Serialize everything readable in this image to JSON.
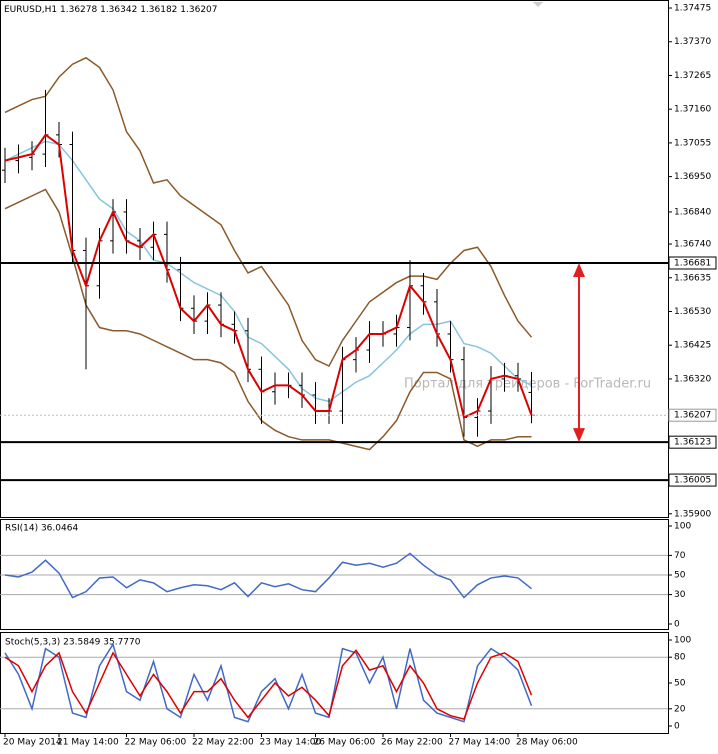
{
  "chart_data": [
    {
      "type": "candlestick",
      "title": "EURUSD,H1",
      "categories": [
        "20 May 2014",
        null,
        null,
        null,
        "21 May 14:00",
        null,
        null,
        null,
        null,
        "22 May 06:00",
        null,
        null,
        null,
        null,
        "22 May 22:00",
        null,
        null,
        null,
        null,
        "23 May 14:00",
        null,
        null,
        null,
        "26 May 06:00",
        null,
        null,
        null,
        null,
        "26 May 22:00",
        null,
        null,
        null,
        null,
        "27 May 14:00",
        null,
        null,
        null,
        null,
        "28 May 06:00",
        null
      ],
      "open": [
        1.3697,
        1.37,
        1.3701,
        1.3702,
        1.3708,
        1.3705,
        1.3672,
        1.3661,
        1.3675,
        1.3684,
        1.3675,
        1.3673,
        1.3677,
        1.3666,
        1.3654,
        1.365,
        1.3655,
        1.3649,
        1.3647,
        1.3635,
        1.3628,
        1.363,
        1.363,
        1.3627,
        1.3622,
        1.3622,
        1.3638,
        1.3641,
        1.3646,
        1.3646,
        1.3648,
        1.3661,
        1.3656,
        1.3646,
        1.3638,
        1.362,
        1.3622,
        1.3632,
        1.3633,
        1.36278
      ],
      "high": [
        1.3704,
        1.3705,
        1.3706,
        1.3722,
        1.3712,
        1.3709,
        1.3676,
        1.3679,
        1.3688,
        1.3688,
        1.3679,
        1.3681,
        1.3681,
        1.367,
        1.3658,
        1.3659,
        1.3659,
        1.3653,
        1.3651,
        1.3639,
        1.3634,
        1.3634,
        1.3634,
        1.3631,
        1.3626,
        1.3642,
        1.3645,
        1.365,
        1.365,
        1.3652,
        1.3669,
        1.3665,
        1.366,
        1.365,
        1.3642,
        1.3626,
        1.3636,
        1.3637,
        1.3637,
        1.36342
      ],
      "low": [
        1.3693,
        1.3696,
        1.3697,
        1.3698,
        1.3701,
        1.3668,
        1.3635,
        1.3657,
        1.3671,
        1.3671,
        1.3669,
        1.3669,
        1.3662,
        1.365,
        1.3646,
        1.3646,
        1.3645,
        1.3643,
        1.3631,
        1.3618,
        1.3624,
        1.3626,
        1.3623,
        1.3618,
        1.3618,
        1.3618,
        1.3634,
        1.3637,
        1.3642,
        1.3642,
        1.3644,
        1.3652,
        1.3642,
        1.3634,
        1.3614,
        1.3614,
        1.3618,
        1.3628,
        1.3628,
        1.36182
      ],
      "close": [
        1.37,
        1.3701,
        1.3702,
        1.3708,
        1.3705,
        1.3672,
        1.3661,
        1.3675,
        1.3684,
        1.3675,
        1.3673,
        1.3677,
        1.3666,
        1.3654,
        1.365,
        1.3655,
        1.3649,
        1.3647,
        1.3635,
        1.3628,
        1.363,
        1.363,
        1.3627,
        1.3622,
        1.3622,
        1.3638,
        1.3641,
        1.3646,
        1.3646,
        1.3648,
        1.3661,
        1.3656,
        1.3646,
        1.3638,
        1.362,
        1.3622,
        1.3632,
        1.3633,
        1.3632,
        1.36207
      ],
      "candle_color": "#000000",
      "close_line_color": "#dd0000",
      "series": [
        {
          "color": "#8b5a2b",
          "values": [
            1.3715,
            1.3717,
            1.3719,
            1.372,
            1.3726,
            1.373,
            1.3732,
            1.3729,
            1.3722,
            1.3709,
            1.3703,
            1.3693,
            1.3694,
            1.3689,
            1.3686,
            1.3683,
            1.368,
            1.3672,
            1.3665,
            1.3667,
            1.3661,
            1.3655,
            1.3644,
            1.3638,
            1.3636,
            1.3644,
            1.365,
            1.3656,
            1.3659,
            1.3662,
            1.3664,
            1.3664,
            1.3663,
            1.3668,
            1.3672,
            1.3673,
            1.3667,
            1.3658,
            1.365,
            1.3645
          ]
        },
        {
          "color": "#8b5a2b",
          "values": [
            1.3685,
            1.3687,
            1.3689,
            1.3691,
            1.3684,
            1.367,
            1.3655,
            1.3648,
            1.3647,
            1.3647,
            1.3646,
            1.3644,
            1.3642,
            1.364,
            1.3638,
            1.3638,
            1.3637,
            1.3634,
            1.3625,
            1.3619,
            1.3616,
            1.3614,
            1.3613,
            1.3613,
            1.3613,
            1.3612,
            1.3611,
            1.361,
            1.3614,
            1.3619,
            1.3628,
            1.3634,
            1.3634,
            1.3632,
            1.3613,
            1.3611,
            1.3613,
            1.3613,
            1.3614,
            1.3614
          ]
        },
        {
          "color": "#87c5dc",
          "values": [
            1.37,
            1.3702,
            1.3704,
            1.3706,
            1.3705,
            1.37,
            1.3694,
            1.3688,
            1.3685,
            1.3678,
            1.3675,
            1.3669,
            1.3668,
            1.3665,
            1.3662,
            1.366,
            1.3658,
            1.3653,
            1.3645,
            1.3643,
            1.3639,
            1.3635,
            1.3629,
            1.3626,
            1.3625,
            1.3628,
            1.3631,
            1.3633,
            1.3637,
            1.3641,
            1.3646,
            1.3649,
            1.3649,
            1.365,
            1.3643,
            1.3642,
            1.364,
            1.3636,
            1.3632,
            1.363
          ]
        }
      ],
      "levels": [
        1.36681,
        1.36123,
        1.36005
      ],
      "ylim": [
        1.3589,
        1.375
      ],
      "yticks": [
        1.37475,
        {
          "value": 1.3737,
          "label": "1.37370"
        },
        1.37265,
        {
          "value": 1.3716,
          "label": "1.37160"
        },
        1.37055,
        {
          "value": 1.3695,
          "label": "1.36950"
        },
        {
          "value": 1.3684,
          "label": "1.36840"
        },
        {
          "value": 1.3674,
          "label": "1.36740"
        },
        1.36635,
        {
          "value": 1.3653,
          "label": "1.36530"
        },
        1.36425,
        {
          "value": 1.3632,
          "label": "1.36320"
        },
        {
          "value": 1.359,
          "label": "1.35900"
        }
      ],
      "watermark": "Портал для трейдеров - ForTrader.ru"
    },
    {
      "type": "line",
      "title": "RSI(14) 36.0464",
      "color": "#4169c8",
      "values": [
        50,
        48,
        53,
        65,
        52,
        27,
        33,
        47,
        48,
        37,
        45,
        42,
        33,
        37,
        40,
        39,
        35,
        42,
        28,
        42,
        38,
        41,
        35,
        33,
        47,
        63,
        60,
        62,
        58,
        62,
        72,
        60,
        50,
        45,
        27,
        40,
        47,
        49,
        47,
        36.0464
      ],
      "ylim": [
        0,
        100
      ],
      "yticks": [
        100,
        70,
        50,
        30,
        0
      ],
      "levels": [
        70,
        50,
        30
      ]
    },
    {
      "type": "line",
      "title": "Stoch(5,3,3) 23.5849 35.7770",
      "series": [
        {
          "color": "#4169c8",
          "values": [
            85,
            60,
            20,
            90,
            80,
            15,
            10,
            70,
            95,
            40,
            30,
            75,
            20,
            10,
            60,
            30,
            70,
            10,
            5,
            40,
            55,
            20,
            60,
            15,
            10,
            90,
            85,
            50,
            80,
            20,
            90,
            30,
            15,
            10,
            5,
            70,
            90,
            80,
            65,
            23.5849
          ]
        },
        {
          "color": "#dd0000",
          "values": [
            80,
            70,
            40,
            70,
            85,
            40,
            15,
            50,
            85,
            60,
            35,
            60,
            40,
            15,
            40,
            40,
            55,
            30,
            10,
            30,
            50,
            35,
            45,
            30,
            12,
            70,
            88,
            65,
            70,
            40,
            70,
            50,
            20,
            12,
            8,
            50,
            80,
            85,
            75,
            35.777
          ]
        }
      ],
      "ylim": [
        0,
        100
      ],
      "yticks": [
        100,
        80,
        50,
        20,
        0
      ],
      "levels": [
        80,
        20
      ]
    }
  ]
}
